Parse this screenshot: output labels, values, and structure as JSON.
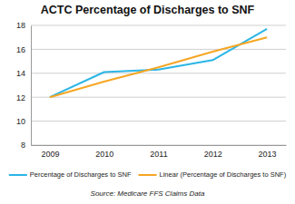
{
  "chart_data": {
    "type": "line",
    "title": "ACTC Percentage of Discharges to SNF",
    "categories": [
      "2009",
      "2010",
      "2011",
      "2012",
      "2013"
    ],
    "series": [
      {
        "name": "Percentage of Discharges to SNF",
        "color": "#2bb5e6",
        "values": [
          12.0,
          14.1,
          14.3,
          15.1,
          17.7
        ]
      },
      {
        "name": "Linear (Percentage of Discharges to SNF)",
        "color": "#f5a623",
        "values": [
          12.0,
          13.3,
          14.5,
          15.8,
          17.0
        ]
      }
    ],
    "ylim": [
      8,
      18
    ],
    "yticks": [
      8,
      10,
      12,
      14,
      16,
      18
    ],
    "grid": true,
    "legend": "bottom",
    "source": "Source: Medicare FFS Claims Data"
  }
}
